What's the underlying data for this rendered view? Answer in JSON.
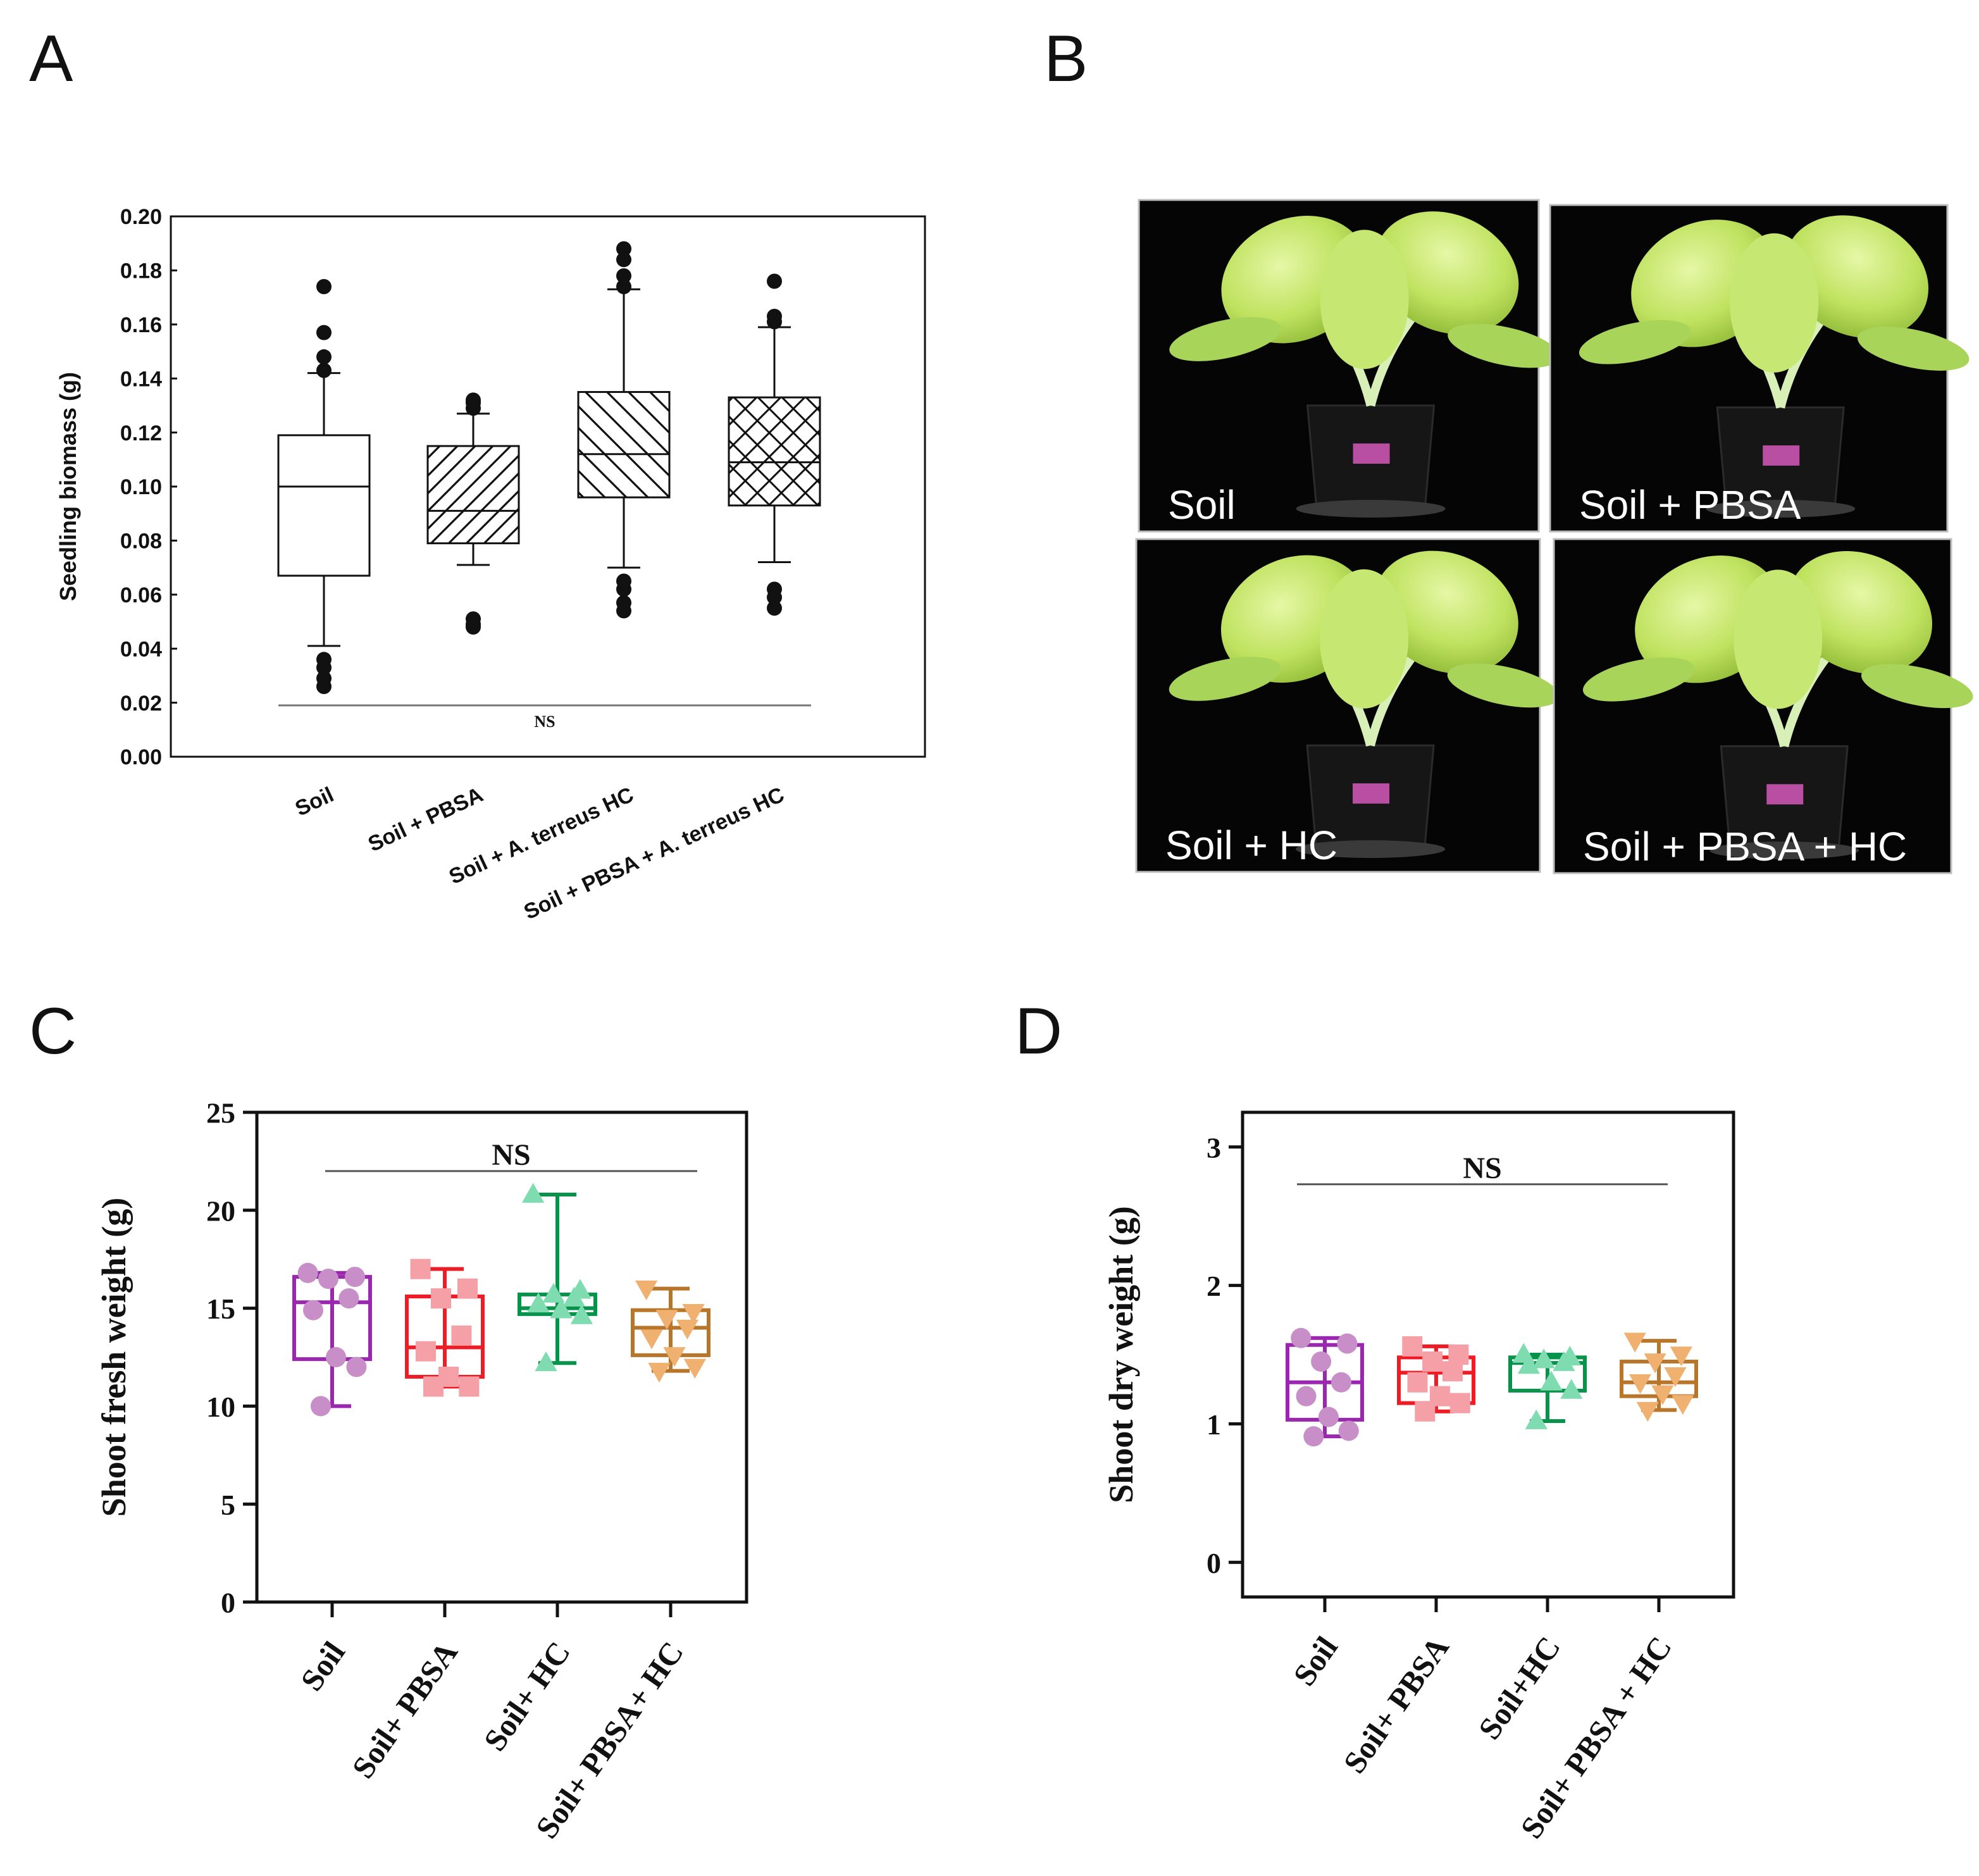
{
  "panel_labels": [
    "A",
    "B",
    "C",
    "D"
  ],
  "photo_labels": [
    "Soil",
    "Soil + PBSA",
    "Soil + HC",
    "Soil + PBSA + HC"
  ],
  "colors": {
    "soil": "#9b27b0",
    "pbsa": "#ee1c25",
    "hc": "#07934a",
    "pbsa_hc": "#b8762b",
    "soil_points": "#c88ec7",
    "pbsa_points": "#f5a0a6",
    "hc_points": "#7fdcb0",
    "pbsa_hc_points": "#f0b070"
  },
  "chart_data": [
    {
      "id": "A",
      "type": "box",
      "title": "",
      "ylabel": "Seedling biomass (g)",
      "ylim": [
        0,
        0.2
      ],
      "yticks": [
        "0.00",
        "0.02",
        "0.04",
        "0.06",
        "0.08",
        "0.10",
        "0.12",
        "0.14",
        "0.16",
        "0.18",
        "0.20"
      ],
      "categories": [
        "Soil",
        "Soil + PBSA",
        "Soil + A. terreus HC",
        "Soil + PBSA + A. terreus HC"
      ],
      "significance": "NS",
      "significance_y": 0.019,
      "boxes": [
        {
          "q1": 0.067,
          "median": 0.1,
          "q3": 0.119,
          "whisker_low": 0.041,
          "whisker_high": 0.142,
          "outliers": [
            0.174,
            0.157,
            0.148,
            0.143,
            0.036,
            0.033,
            0.029,
            0.026
          ],
          "pattern": "none"
        },
        {
          "q1": 0.079,
          "median": 0.091,
          "q3": 0.115,
          "whisker_low": 0.071,
          "whisker_high": 0.127,
          "outliers": [
            0.132,
            0.131,
            0.129,
            0.051,
            0.049,
            0.048
          ],
          "pattern": "diag-up"
        },
        {
          "q1": 0.096,
          "median": 0.112,
          "q3": 0.135,
          "whisker_low": 0.07,
          "whisker_high": 0.173,
          "outliers": [
            0.188,
            0.184,
            0.178,
            0.174,
            0.065,
            0.062,
            0.057,
            0.054
          ],
          "pattern": "diag-down"
        },
        {
          "q1": 0.093,
          "median": 0.109,
          "q3": 0.133,
          "whisker_low": 0.072,
          "whisker_high": 0.159,
          "outliers": [
            0.176,
            0.163,
            0.161,
            0.062,
            0.059,
            0.055
          ],
          "pattern": "cross"
        }
      ]
    },
    {
      "id": "C",
      "type": "box",
      "title": "",
      "ylabel": "Shoot fresh weight (g)",
      "ylim": [
        0,
        25
      ],
      "yticks": [
        "0",
        "5",
        "10",
        "15",
        "20",
        "25"
      ],
      "categories": [
        "Soil",
        "Soil+ PBSA",
        "Soil+ HC",
        "Soil+ PBSA+ HC"
      ],
      "significance": "NS",
      "significance_y": 22,
      "boxes": [
        {
          "min": 10,
          "q1": 12.4,
          "median": 15.3,
          "q3": 16.6,
          "max": 16.8,
          "color": "soil",
          "point_color": "soil_points",
          "marker": "circle",
          "points": [
            16.8,
            16.6,
            16.5,
            15.5,
            14.9,
            12.5,
            12.0,
            10.0
          ]
        },
        {
          "min": 11.0,
          "q1": 11.5,
          "median": 13.0,
          "q3": 15.6,
          "max": 17.0,
          "color": "pbsa",
          "point_color": "pbsa_points",
          "marker": "square",
          "points": [
            17.0,
            16.0,
            15.5,
            13.6,
            12.8,
            11.5,
            11.0,
            11.0
          ]
        },
        {
          "min": 12.2,
          "q1": 14.7,
          "median": 15.0,
          "q3": 15.7,
          "max": 20.8,
          "color": "hc",
          "point_color": "hc_points",
          "marker": "triangle",
          "points": [
            20.8,
            15.9,
            15.7,
            15.5,
            15.2,
            14.9,
            14.6,
            12.2
          ]
        },
        {
          "min": 11.8,
          "q1": 12.6,
          "median": 14.0,
          "q3": 14.9,
          "max": 16.0,
          "color": "pbsa_hc",
          "point_color": "pbsa_hc_points",
          "marker": "triangle-down",
          "points": [
            16.0,
            14.8,
            14.5,
            14.0,
            13.5,
            12.6,
            12.0,
            11.8
          ]
        }
      ]
    },
    {
      "id": "D",
      "type": "box",
      "title": "",
      "ylabel": "Shoot dry weight (g)",
      "ylim": [
        -0.25,
        3.25
      ],
      "yticks": [
        "0",
        "1",
        "2",
        "3"
      ],
      "categories": [
        "Soil",
        "Soil+ PBSA",
        "Soil+HC",
        "Soil+ PBSA + HC"
      ],
      "significance": "NS",
      "significance_y": 2.73,
      "boxes": [
        {
          "min": 0.91,
          "q1": 1.03,
          "median": 1.3,
          "q3": 1.57,
          "max": 1.62,
          "color": "soil",
          "point_color": "soil_points",
          "marker": "circle",
          "points": [
            1.62,
            1.58,
            1.45,
            1.3,
            1.2,
            1.05,
            0.95,
            0.91
          ]
        },
        {
          "min": 1.09,
          "q1": 1.15,
          "median": 1.37,
          "q3": 1.48,
          "max": 1.56,
          "color": "pbsa",
          "point_color": "pbsa_points",
          "marker": "square",
          "points": [
            1.56,
            1.5,
            1.45,
            1.38,
            1.3,
            1.2,
            1.15,
            1.09
          ]
        },
        {
          "min": 1.02,
          "q1": 1.24,
          "median": 1.44,
          "q3": 1.48,
          "max": 1.5,
          "color": "hc",
          "point_color": "hc_points",
          "marker": "triangle",
          "points": [
            1.5,
            1.48,
            1.46,
            1.44,
            1.42,
            1.3,
            1.24,
            1.02
          ]
        },
        {
          "min": 1.1,
          "q1": 1.2,
          "median": 1.3,
          "q3": 1.45,
          "max": 1.6,
          "color": "pbsa_hc",
          "point_color": "pbsa_hc_points",
          "marker": "triangle-down",
          "points": [
            1.6,
            1.5,
            1.45,
            1.35,
            1.3,
            1.22,
            1.15,
            1.1
          ]
        }
      ]
    }
  ]
}
